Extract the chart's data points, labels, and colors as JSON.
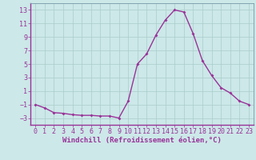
{
  "x": [
    0,
    1,
    2,
    3,
    4,
    5,
    6,
    7,
    8,
    9,
    10,
    11,
    12,
    13,
    14,
    15,
    16,
    17,
    18,
    19,
    20,
    21,
    22,
    23
  ],
  "y": [
    -1,
    -1.5,
    -2.2,
    -2.3,
    -2.5,
    -2.6,
    -2.6,
    -2.7,
    -2.7,
    -3.0,
    -0.5,
    5.0,
    6.5,
    9.3,
    11.5,
    13.0,
    12.7,
    9.5,
    5.5,
    3.3,
    1.5,
    0.7,
    -0.5,
    -1.0
  ],
  "line_color": "#993399",
  "marker": "D",
  "marker_size": 2,
  "bg_color": "#cce8e8",
  "grid_color": "#aacccc",
  "xlabel": "Windchill (Refroidissement éolien,°C)",
  "xlabel_color": "#993399",
  "tick_color": "#993399",
  "label_color": "#993399",
  "ylim": [
    -4,
    14
  ],
  "yticks": [
    -3,
    -1,
    1,
    3,
    5,
    7,
    9,
    11,
    13
  ],
  "xlim": [
    -0.5,
    23.5
  ],
  "xticks": [
    0,
    1,
    2,
    3,
    4,
    5,
    6,
    7,
    8,
    9,
    10,
    11,
    12,
    13,
    14,
    15,
    16,
    17,
    18,
    19,
    20,
    21,
    22,
    23
  ],
  "font_size": 6.0,
  "xlabel_font_size": 6.5,
  "line_width": 1.0
}
